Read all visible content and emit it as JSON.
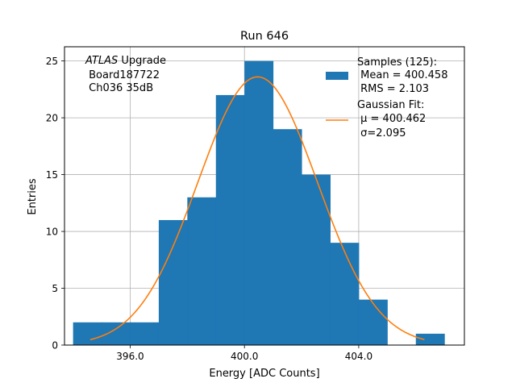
{
  "chart_data": {
    "type": "bar",
    "title": "Run 646",
    "xlabel": "Energy [ADC Counts]",
    "ylabel": "Entries",
    "xlim": [
      393.7,
      407.7
    ],
    "ylim": [
      0,
      26.25
    ],
    "xticks": [
      396.0,
      400.0,
      404.0
    ],
    "xtick_labels": [
      "396.0",
      "400.0",
      "404.0"
    ],
    "yticks": [
      0,
      5,
      10,
      15,
      20,
      25
    ],
    "ytick_labels": [
      "0",
      "5",
      "10",
      "15",
      "20",
      "25"
    ],
    "grid": true,
    "histogram": {
      "name": "Samples (125):",
      "color": "#1f77b4",
      "bins": [
        {
          "x0": 394,
          "x1": 395,
          "count": 2
        },
        {
          "x0": 395,
          "x1": 396,
          "count": 2
        },
        {
          "x0": 396,
          "x1": 397,
          "count": 2
        },
        {
          "x0": 397,
          "x1": 398,
          "count": 11
        },
        {
          "x0": 398,
          "x1": 399,
          "count": 13
        },
        {
          "x0": 399,
          "x1": 400,
          "count": 22
        },
        {
          "x0": 400,
          "x1": 401,
          "count": 25
        },
        {
          "x0": 401,
          "x1": 402,
          "count": 19
        },
        {
          "x0": 402,
          "x1": 403,
          "count": 15
        },
        {
          "x0": 403,
          "x1": 404,
          "count": 9
        },
        {
          "x0": 404,
          "x1": 405,
          "count": 4
        },
        {
          "x0": 405,
          "x1": 406,
          "count": 0
        },
        {
          "x0": 406,
          "x1": 407,
          "count": 1
        }
      ]
    },
    "fit": {
      "name": "Gaussian Fit:",
      "color": "#ff7f0e",
      "mu": 400.462,
      "sigma": 2.095,
      "amplitude": 23.6,
      "x_range": [
        394.6,
        406.3
      ]
    },
    "legend": {
      "placement": "top-right",
      "samples_lines": [
        "Samples (125):",
        " Mean = 400.458",
        " RMS = 2.103"
      ],
      "fit_lines": [
        "Gaussian Fit:",
        " μ = 400.462",
        " σ=2.095"
      ]
    },
    "annotation": {
      "atlas": "ATLAS",
      "lines": [
        " Upgrade",
        " Board187722",
        " Ch036 35dB"
      ]
    }
  }
}
